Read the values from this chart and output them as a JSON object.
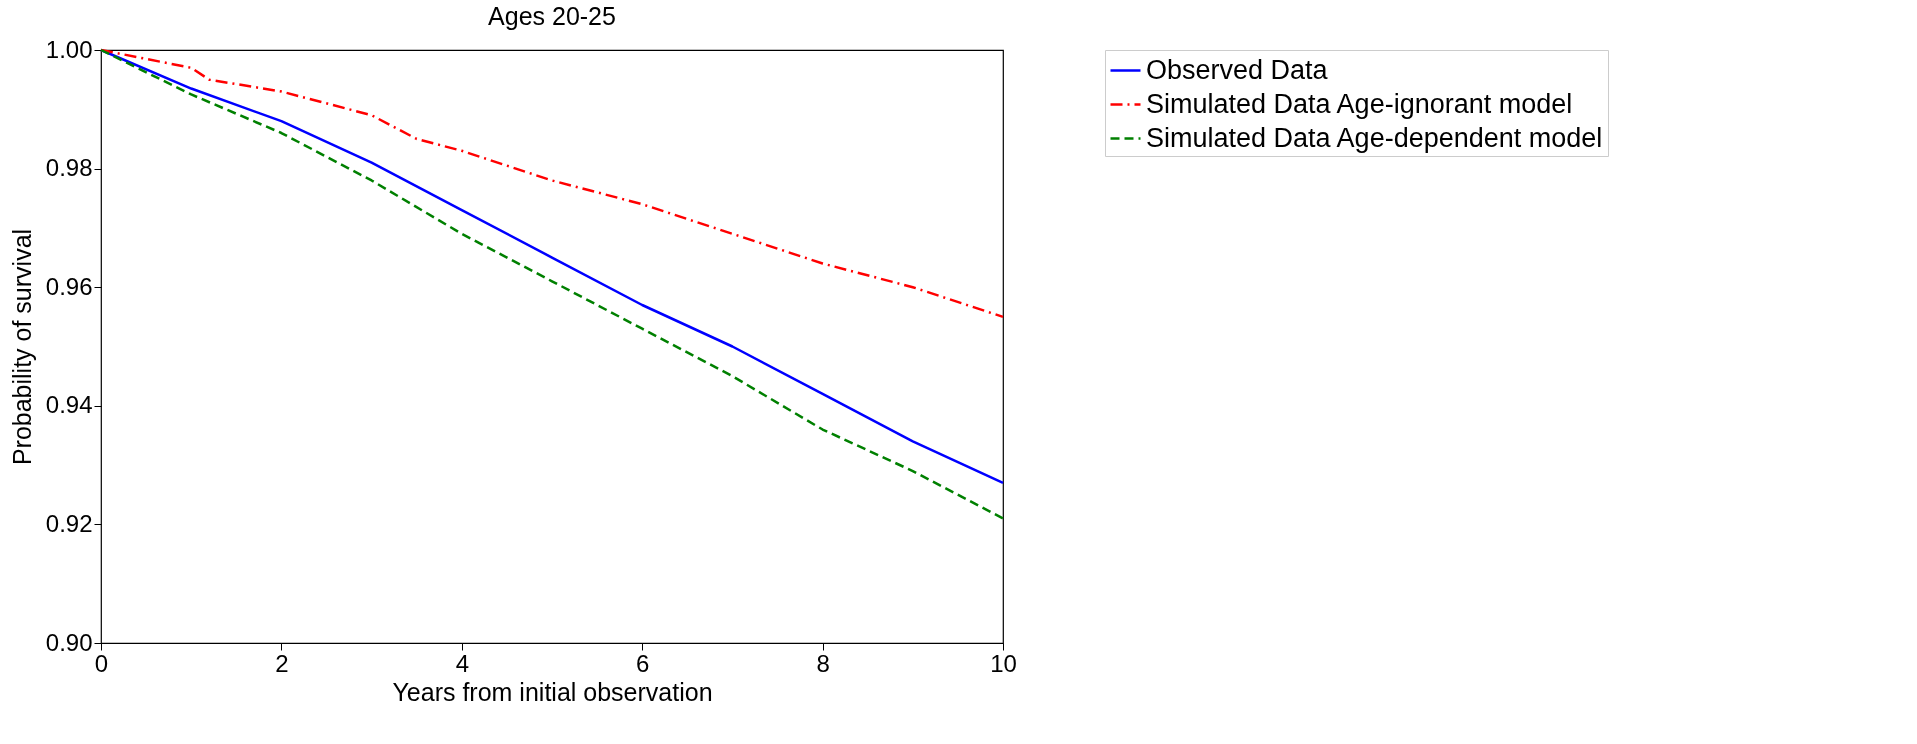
{
  "chart_data": {
    "type": "line",
    "title": "Ages 20-25",
    "xlabel": "Years from initial observation",
    "ylabel": "Probability of survival",
    "x": [
      0,
      1,
      2,
      3,
      4,
      5,
      6,
      7,
      8,
      9,
      10
    ],
    "series": [
      {
        "name": "Observed Data",
        "color": "#0000ff",
        "line_style": "solid",
        "values": [
          1.0,
          0.9935,
          0.988,
          0.981,
          0.973,
          0.965,
          0.957,
          0.95,
          0.942,
          0.934,
          0.927
        ]
      },
      {
        "name": "Simulated Data Age-ignorant model",
        "color": "#ff0000",
        "line_style": "dashdot",
        "x": [
          0,
          1,
          1.2,
          2,
          3,
          3.5,
          4,
          5,
          6,
          7,
          8,
          9,
          10
        ],
        "values": [
          1.0,
          0.997,
          0.995,
          0.993,
          0.989,
          0.985,
          0.983,
          0.978,
          0.974,
          0.969,
          0.964,
          0.96,
          0.955
        ]
      },
      {
        "name": "Simulated Data Age-dependent model",
        "color": "#008000",
        "line_style": "dashed",
        "values": [
          1.0,
          0.9925,
          0.986,
          0.978,
          0.969,
          0.961,
          0.953,
          0.945,
          0.936,
          0.929,
          0.921
        ]
      }
    ],
    "xlim": [
      0,
      10
    ],
    "xticks": [
      0,
      2,
      4,
      6,
      8,
      10
    ],
    "ylim": [
      0.9,
      1.0
    ],
    "yticks": [
      {
        "value": 0.9,
        "label": "0.90"
      },
      0.92,
      0.94,
      0.96,
      0.98,
      {
        "value": 1.0,
        "label": "1.00"
      }
    ],
    "grid": false,
    "legend": "right"
  }
}
